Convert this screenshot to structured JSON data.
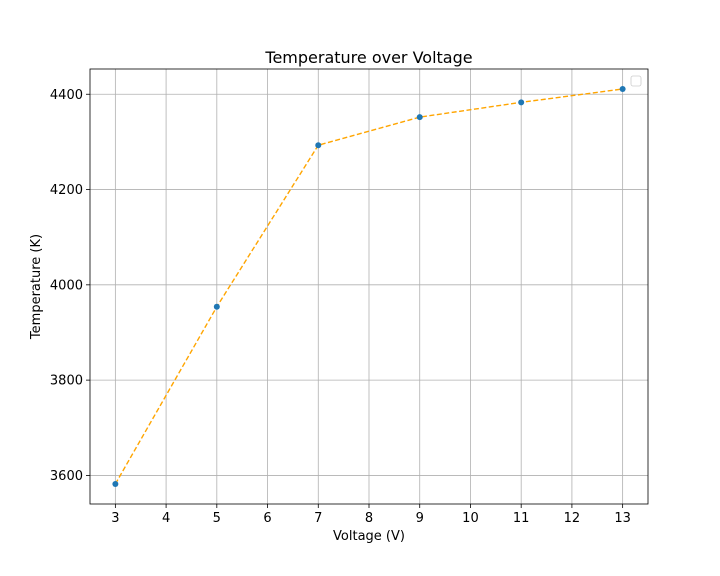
{
  "chart_data": {
    "type": "line",
    "title": "Temperature over Voltage",
    "xlabel": "Voltage (V)",
    "ylabel": "Temperature (K)",
    "xlim": [
      2.5,
      13.5
    ],
    "ylim": [
      3540,
      4453
    ],
    "xticks": [
      3,
      4,
      5,
      6,
      7,
      8,
      9,
      10,
      11,
      12,
      13
    ],
    "yticks": [
      3600,
      3800,
      4000,
      4200,
      4400
    ],
    "grid": true,
    "legend": "top-right",
    "series": [
      {
        "x": [
          3,
          5,
          7,
          9,
          11,
          13
        ],
        "y": [
          3582,
          3954,
          4293,
          4352,
          4383,
          4411
        ],
        "line_color": "#ffa500",
        "line_style": "dashed",
        "marker_color": "#1f77b4"
      }
    ]
  }
}
